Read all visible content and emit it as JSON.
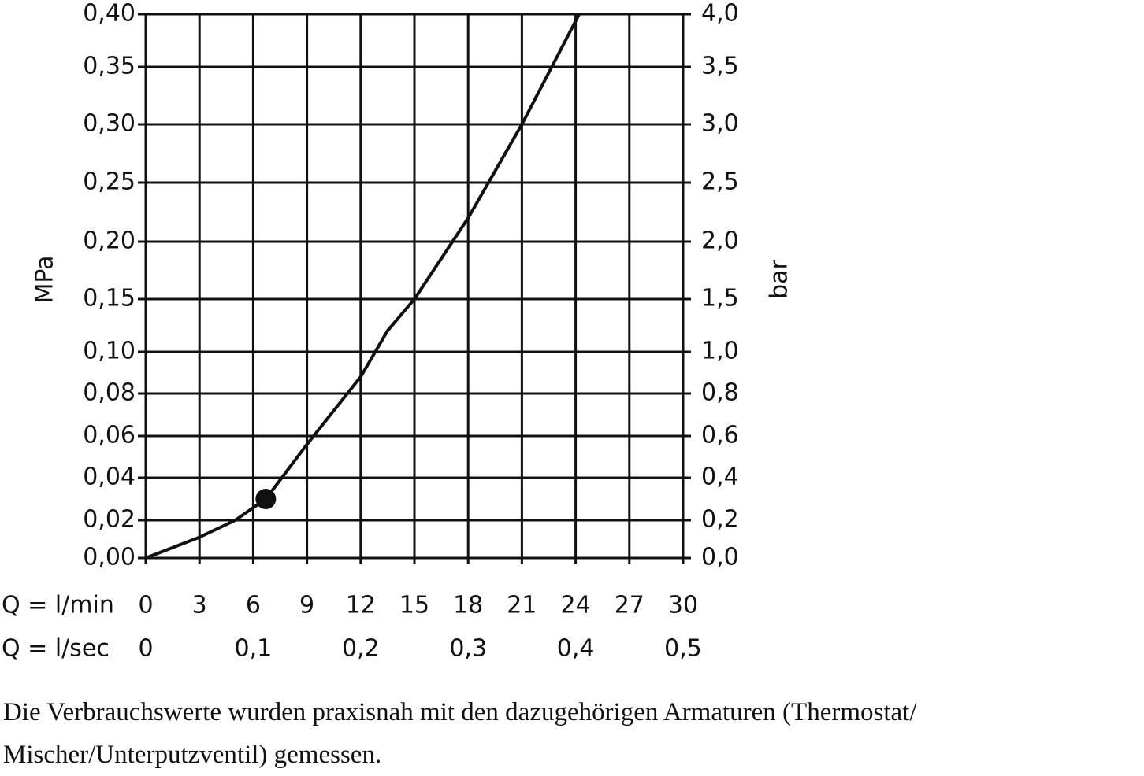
{
  "chart_data": {
    "type": "line",
    "y_label": "MPa",
    "y2_label": "bar",
    "x_label": "Q = l/min",
    "x2_label": "Q = l/sec",
    "x": [
      0,
      3,
      5,
      6.7,
      7.6,
      9,
      10.5,
      12,
      13.5,
      15,
      18,
      21,
      24.2
    ],
    "series": [
      {
        "color": "#111111",
        "values": [
          0,
          0.011,
          0.02,
          0.03,
          0.04,
          0.056,
          0.072,
          0.088,
          0.12,
          0.15,
          0.22,
          0.3,
          0.4
        ]
      }
    ],
    "point": {
      "x": 6.7,
      "y": 0.03
    },
    "xlim": [
      0,
      30
    ],
    "xticks": [
      0,
      3,
      6,
      9,
      12,
      15,
      18,
      21,
      24,
      27,
      30
    ],
    "x2lim": [
      0,
      0.5
    ],
    "x2ticks": [
      0,
      {
        "value": 0.1,
        "label": "0,1"
      },
      {
        "value": 0.2,
        "label": "0,2"
      },
      {
        "value": 0.3,
        "label": "0,3"
      },
      {
        "value": 0.4,
        "label": "0,4"
      },
      {
        "value": 0.5,
        "label": "0,5"
      }
    ],
    "ylim": [
      0,
      0.4
    ],
    "yticks": [
      {
        "value": 0,
        "label": "0,00"
      },
      {
        "value": 0.02,
        "label": "0,02"
      },
      {
        "value": 0.04,
        "label": "0,04"
      },
      {
        "value": 0.06,
        "label": "0,06"
      },
      {
        "value": 0.08,
        "label": "0,08"
      },
      {
        "value": 0.1,
        "label": "0,10"
      },
      {
        "value": 0.15,
        "label": "0,15"
      },
      {
        "value": 0.2,
        "label": "0,20"
      },
      {
        "value": 0.25,
        "label": "0,25"
      },
      {
        "value": 0.3,
        "label": "0,30"
      },
      {
        "value": 0.35,
        "label": "0,35"
      },
      {
        "value": 0.4,
        "label": "0,40"
      }
    ],
    "y2lim": [
      0,
      4
    ],
    "y2ticks": [
      {
        "value": 0,
        "label": "0,0"
      },
      {
        "value": 0.2,
        "label": "0,2"
      },
      {
        "value": 0.4,
        "label": "0,4"
      },
      {
        "value": 0.6,
        "label": "0,6"
      },
      {
        "value": 0.8,
        "label": "0,8"
      },
      {
        "value": 1,
        "label": "1,0"
      },
      {
        "value": 1.5,
        "label": "1,5"
      },
      {
        "value": 2,
        "label": "2,0"
      },
      {
        "value": 2.5,
        "label": "2,5"
      },
      {
        "value": 3,
        "label": "3,0"
      },
      {
        "value": 3.5,
        "label": "3,5"
      },
      {
        "value": 4,
        "label": "4,0"
      }
    ],
    "grid": true,
    "caption": "Die Verbrauchswerte wurden praxisnah mit den dazugehörigen Armaturen (Thermostat/ Mischer/Unterputzventil) gemessen."
  }
}
